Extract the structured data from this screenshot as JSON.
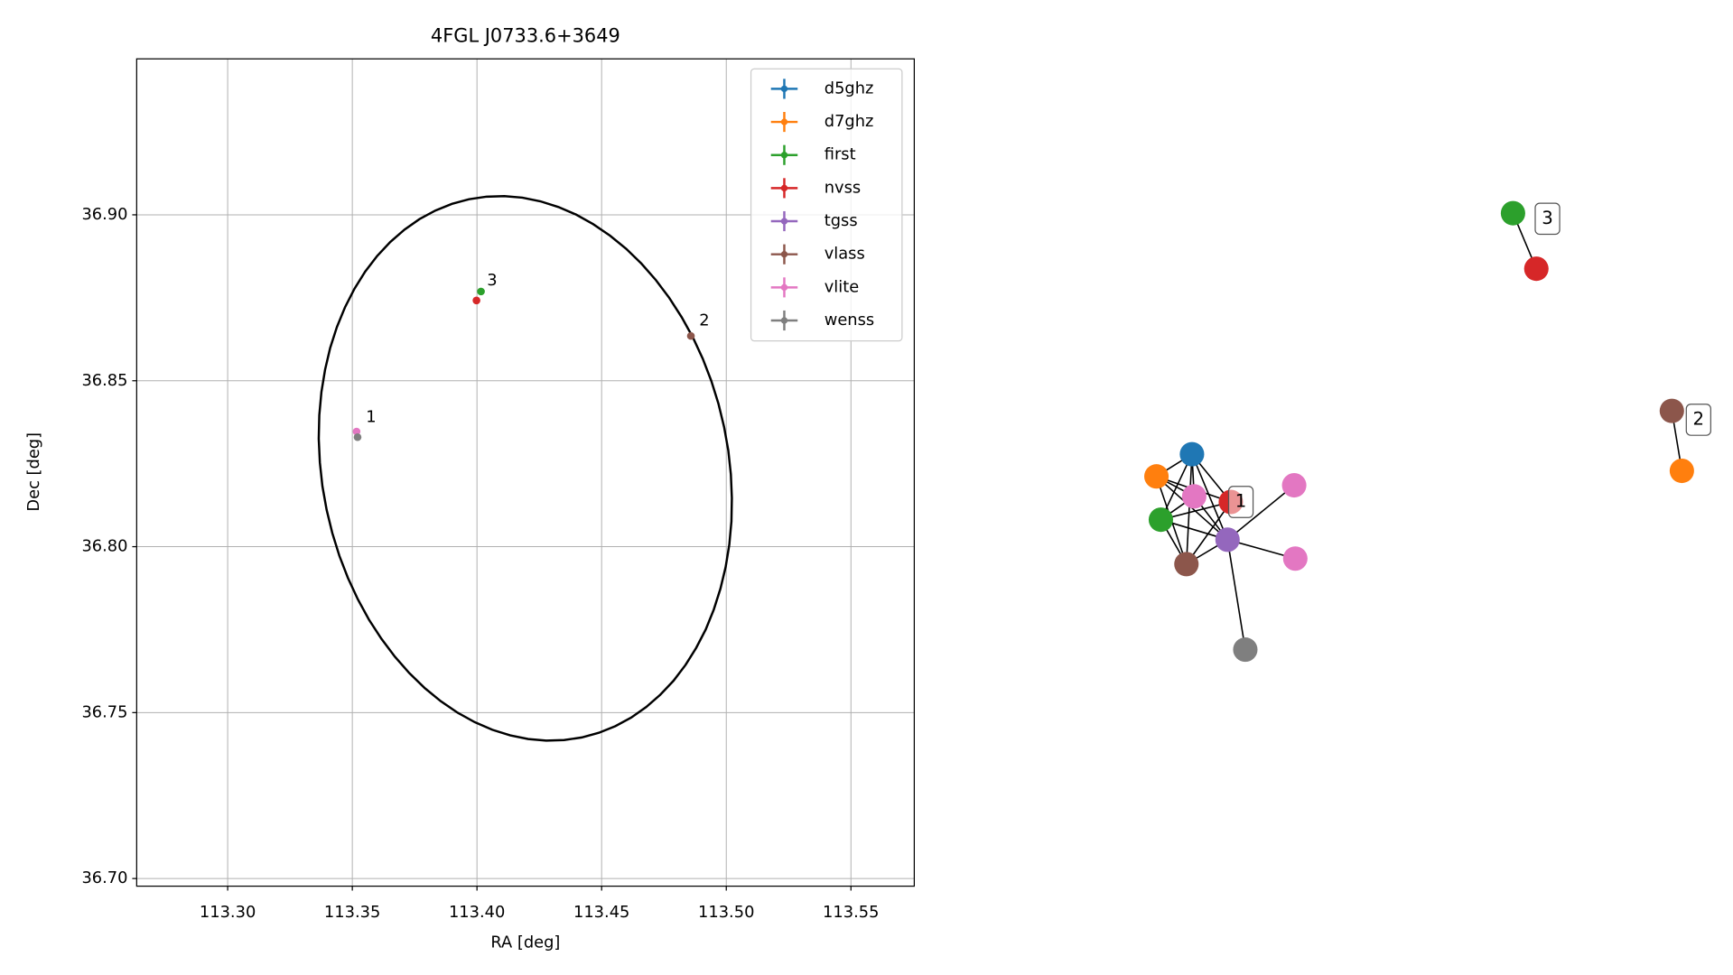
{
  "chart_data": {
    "type": "scatter",
    "title": "4FGL J0733.6+3649",
    "x_label": "RA [deg]",
    "y_label": "Dec [deg]",
    "xlim": [
      113.2635,
      113.5754
    ],
    "ylim": [
      36.6977,
      36.947
    ],
    "xticks": [
      {
        "value": 113.3,
        "label": "113.30"
      },
      {
        "value": 113.35,
        "label": "113.35"
      },
      {
        "value": 113.4,
        "label": "113.40"
      },
      {
        "value": 113.45,
        "label": "113.45"
      },
      {
        "value": 113.5,
        "label": "113.50"
      },
      {
        "value": 113.55,
        "label": "113.55"
      }
    ],
    "yticks": [
      {
        "value": 36.7,
        "label": "36.70"
      },
      {
        "value": 36.75,
        "label": "36.75"
      },
      {
        "value": 36.8,
        "label": "36.80"
      },
      {
        "value": 36.85,
        "label": "36.85"
      },
      {
        "value": 36.9,
        "label": "36.90"
      }
    ],
    "grid": true,
    "legend": "upper right",
    "series": [
      {
        "name": "d5ghz",
        "color": "#1f77b4",
        "x": [],
        "y": []
      },
      {
        "name": "d7ghz",
        "color": "#ff7f0e",
        "x": [],
        "y": []
      },
      {
        "name": "first",
        "color": "#2ca02c",
        "x": [
          113.4016
        ],
        "y": [
          36.8769
        ]
      },
      {
        "name": "nvss",
        "color": "#d62728",
        "x": [
          113.3998
        ],
        "y": [
          36.8742
        ]
      },
      {
        "name": "tgss",
        "color": "#9467bd",
        "x": [],
        "y": []
      },
      {
        "name": "vlass",
        "color": "#8c564b",
        "x": [
          113.4858
        ],
        "y": [
          36.8635
        ]
      },
      {
        "name": "vlite",
        "color": "#e377c2",
        "x": [
          113.3517
        ],
        "y": [
          36.8347
        ]
      },
      {
        "name": "wenss",
        "color": "#7f7f7f",
        "x": [
          113.3521
        ],
        "y": [
          36.833
        ]
      }
    ],
    "annotations": [
      "1",
      "3",
      "2"
    ],
    "ellipse": {
      "x": 113.4194,
      "y": 36.8236,
      "a": 0.0874,
      "b": 0.0772,
      "angle": -42.7,
      "color": "#000000"
    }
  },
  "graph": {
    "labels": [
      "1",
      "3",
      "2"
    ],
    "node_colors": [
      "#1f77b4",
      "#ff7f0e",
      "#e377c2",
      "#d62728",
      "#e377c2",
      "#2ca02c",
      "#9467bd",
      "#e377c2",
      "#8c564b",
      "#7f7f7f",
      "#2ca02c",
      "#d62728",
      "#8c564b",
      "#ff7f0e"
    ]
  }
}
